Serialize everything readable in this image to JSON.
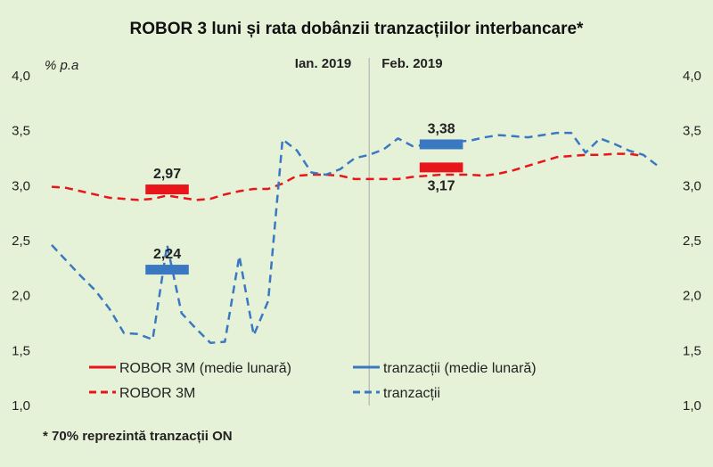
{
  "chart_data": {
    "type": "line",
    "title": "ROBOR 3 luni și rata dobânzii tranzacțiilor interbancare*",
    "unit_label": "% p.a",
    "footnote": "* 70% reprezintă tranzacții ON",
    "ylim": [
      1.0,
      4.0
    ],
    "y_ticks": [
      "1,0",
      "1,5",
      "2,0",
      "2,5",
      "3,0",
      "3,5",
      "4,0"
    ],
    "y_tick_values": [
      1.0,
      1.5,
      2.0,
      2.5,
      3.0,
      3.5,
      4.0
    ],
    "periods": [
      {
        "label": "Ian. 2019",
        "start": 0,
        "end": 22
      },
      {
        "label": "Feb. 2019",
        "start": 22,
        "end": 42
      }
    ],
    "x_range": [
      0,
      42
    ],
    "colors": {
      "robor": "#e8161a",
      "tranzactii": "#3a78c2",
      "background": "#e6f2d8"
    },
    "series": [
      {
        "name": "ROBOR 3M",
        "style": "dashed",
        "color": "#e8161a",
        "x": [
          0,
          1,
          2,
          3,
          4,
          5,
          6,
          7,
          8,
          9,
          10,
          11,
          12,
          13,
          14,
          15,
          16,
          17,
          18,
          19,
          20,
          21,
          22,
          23,
          24,
          25,
          26,
          27,
          28,
          29,
          30,
          31,
          32,
          33,
          34,
          35,
          36,
          37,
          38,
          39,
          40,
          41
        ],
        "y": [
          2.99,
          2.98,
          2.95,
          2.92,
          2.89,
          2.88,
          2.87,
          2.88,
          2.91,
          2.89,
          2.87,
          2.88,
          2.92,
          2.95,
          2.97,
          2.97,
          3.02,
          3.09,
          3.1,
          3.1,
          3.09,
          3.06,
          3.06,
          3.06,
          3.06,
          3.08,
          3.09,
          3.1,
          3.1,
          3.1,
          3.09,
          3.11,
          3.14,
          3.18,
          3.22,
          3.26,
          3.27,
          3.28,
          3.28,
          3.29,
          3.29,
          3.27
        ]
      },
      {
        "name": "tranzacții",
        "style": "dashed",
        "color": "#3a78c2",
        "x": [
          0,
          1,
          2,
          3,
          4,
          5,
          6,
          7,
          8,
          9,
          10,
          11,
          12,
          13,
          14,
          15,
          16,
          17,
          18,
          19,
          20,
          21,
          22,
          23,
          24,
          25,
          26,
          27,
          28,
          29,
          30,
          31,
          32,
          33,
          34,
          35,
          36,
          37,
          38,
          39,
          40,
          41,
          42
        ],
        "y": [
          2.46,
          2.32,
          2.18,
          2.05,
          1.88,
          1.66,
          1.65,
          1.6,
          2.46,
          1.84,
          1.7,
          1.57,
          1.58,
          2.36,
          1.64,
          1.95,
          3.42,
          3.32,
          3.12,
          3.1,
          3.15,
          3.25,
          3.28,
          3.33,
          3.43,
          3.36,
          3.37,
          3.4,
          3.4,
          3.41,
          3.44,
          3.46,
          3.45,
          3.44,
          3.46,
          3.48,
          3.48,
          3.3,
          3.43,
          3.38,
          3.32,
          3.28,
          3.18
        ]
      },
      {
        "name": "ROBOR 3M (medie lunară)",
        "style": "segment",
        "color": "#e8161a",
        "segments": [
          {
            "x": [
              6.5,
              9.5
            ],
            "y": 2.97,
            "label": "2,97"
          },
          {
            "x": [
              25.5,
              28.5
            ],
            "y": 3.17,
            "label": "3,17"
          }
        ]
      },
      {
        "name": "tranzacții (medie lunară)",
        "style": "segment",
        "color": "#3a78c2",
        "segments": [
          {
            "x": [
              6.5,
              9.5
            ],
            "y": 2.24,
            "label": "2,24"
          },
          {
            "x": [
              25.5,
              28.5
            ],
            "y": 3.38,
            "label": "3,38"
          }
        ]
      }
    ],
    "legend": [
      {
        "label": "ROBOR 3M (medie lunară)",
        "color": "#e8161a",
        "style": "solid"
      },
      {
        "label": "tranzacții (medie lunară)",
        "color": "#3a78c2",
        "style": "solid"
      },
      {
        "label": "ROBOR 3M",
        "color": "#e8161a",
        "style": "dashed"
      },
      {
        "label": "tranzacții",
        "color": "#3a78c2",
        "style": "dashed"
      }
    ],
    "legend_position": "bottom"
  }
}
